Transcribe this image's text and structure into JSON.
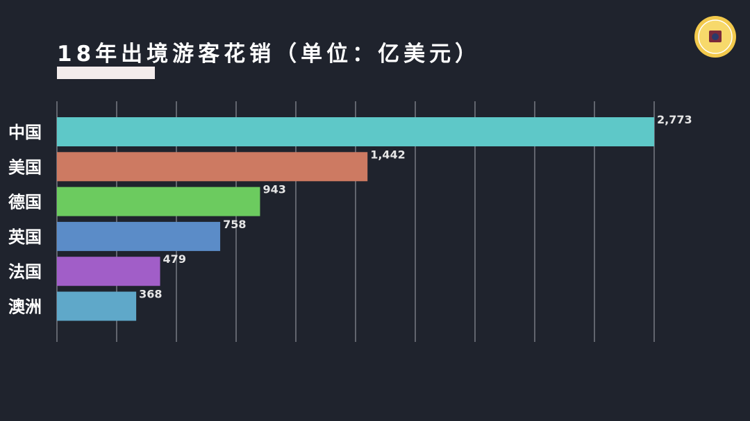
{
  "title": "18年出境游客花销（单位：亿美元）",
  "colors": {
    "background": "#1f232d",
    "grid": "#8e9199",
    "text": "#ffffff"
  },
  "logo": {
    "icon": "finance-badge-icon"
  },
  "chart_data": {
    "type": "bar",
    "orientation": "horizontal",
    "title": "18年出境游客花销（单位：亿美元）",
    "categories": [
      "中国",
      "美国",
      "德国",
      "英国",
      "法国",
      "澳洲"
    ],
    "values": [
      2773,
      1442,
      943,
      758,
      479,
      368
    ],
    "value_labels": [
      "2,773",
      "1,442",
      "943",
      "758",
      "479",
      "368"
    ],
    "bar_colors": [
      "#5ec8c8",
      "#cd7a62",
      "#6ccb5f",
      "#5b8cc8",
      "#a15ec8",
      "#5fa8c9"
    ],
    "xlim": [
      0,
      2773
    ],
    "grid": true,
    "legend": false
  }
}
